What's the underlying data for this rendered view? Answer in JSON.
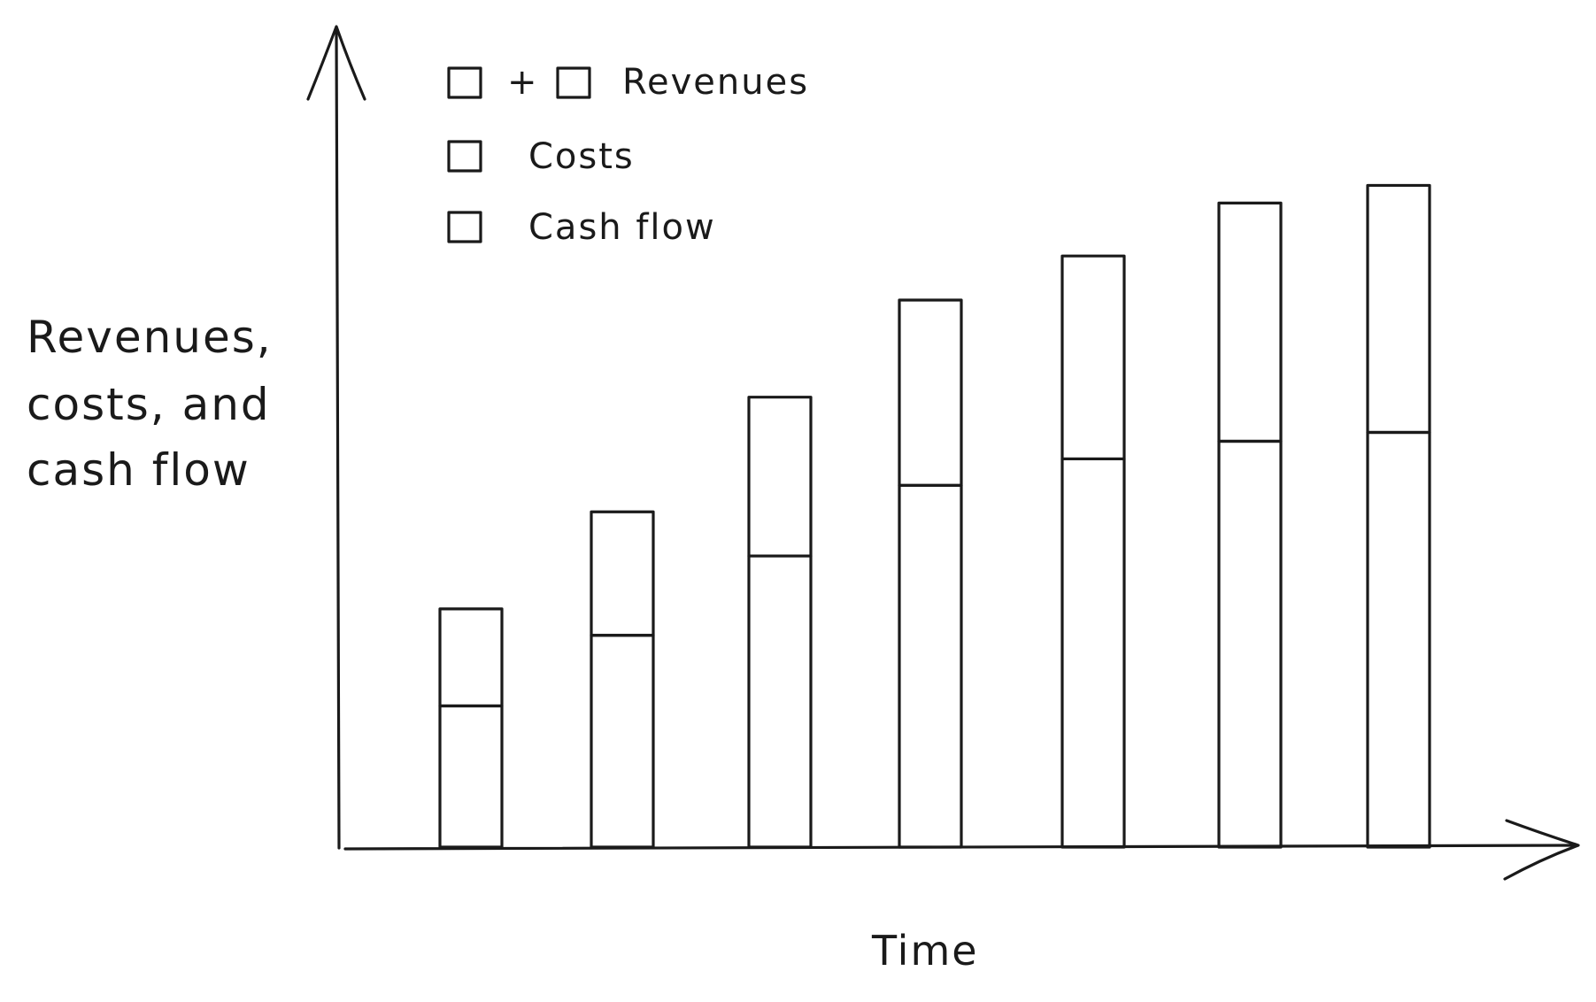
{
  "chart_data": {
    "type": "bar",
    "stacked": true,
    "categories": [
      "",
      "",
      "",
      "",
      "",
      "",
      ""
    ],
    "series": [
      {
        "name": "Cash flow",
        "values": [
          16,
          24,
          33,
          41,
          44,
          46,
          47
        ],
        "color": "#9a9a9a"
      },
      {
        "name": "Costs",
        "values": [
          11,
          14,
          18,
          21,
          23,
          27,
          28
        ],
        "color": "#f08a24"
      }
    ],
    "stack_total_label": "Revenues",
    "ylabel_lines": [
      "Revenues,",
      "costs, and",
      "cash flow"
    ],
    "xlabel": "Time",
    "ylim": [
      0,
      92
    ],
    "grid": false,
    "axis_ticks": false,
    "legend_position": "top-left",
    "legend": {
      "revenues_label": "Revenues",
      "plus_symbol": "+",
      "costs_label": "Costs",
      "cashflow_label": "Cash flow"
    }
  }
}
